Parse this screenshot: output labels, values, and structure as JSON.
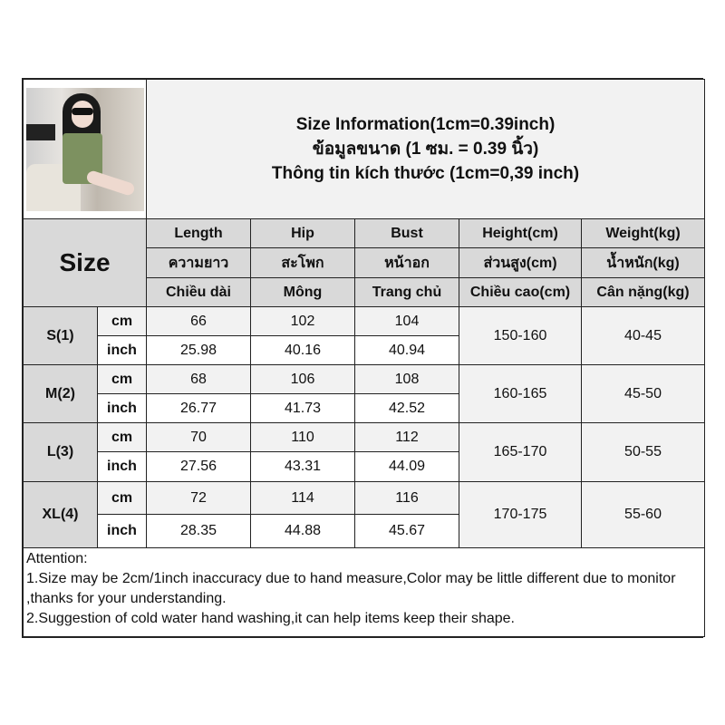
{
  "title": {
    "lines": [
      "Size Information(1cm=0.39inch)",
      "ข้อมูลขนาด (1 ซม. = 0.39 นิ้ว)",
      "Thông tin kích thước (1cm=0,39 inch)"
    ]
  },
  "photo": {
    "icon": "product-photo-green-strapless-romper"
  },
  "header": {
    "size_label": "Size",
    "columns": [
      {
        "en": "Length",
        "th": "ความยาว",
        "vi": "Chiều dài"
      },
      {
        "en": "Hip",
        "th": "สะโพก",
        "vi": "Mông"
      },
      {
        "en": "Bust",
        "th": "หน้าอก",
        "vi": "Trang chủ"
      },
      {
        "en": "Height(cm)",
        "th": "ส่วนสูง(cm)",
        "vi": "Chiều cao(cm)"
      },
      {
        "en": "Weight(kg)",
        "th": "น้ำหนัก(kg)",
        "vi": "Cân nặng(kg)"
      }
    ]
  },
  "units": {
    "cm": "cm",
    "inch": "inch"
  },
  "sizes": [
    {
      "name": "S(1)",
      "cm": [
        "66",
        "102",
        "104"
      ],
      "inch": [
        "25.98",
        "40.16",
        "40.94"
      ],
      "height": "150-160",
      "weight": "40-45"
    },
    {
      "name": "M(2)",
      "cm": [
        "68",
        "106",
        "108"
      ],
      "inch": [
        "26.77",
        "41.73",
        "42.52"
      ],
      "height": "160-165",
      "weight": "45-50"
    },
    {
      "name": "L(3)",
      "cm": [
        "70",
        "110",
        "112"
      ],
      "inch": [
        "27.56",
        "43.31",
        "44.09"
      ],
      "height": "165-170",
      "weight": "50-55"
    },
    {
      "name": "XL(4)",
      "cm": [
        "72",
        "114",
        "116"
      ],
      "inch": [
        "28.35",
        "44.88",
        "45.67"
      ],
      "height": "170-175",
      "weight": "55-60"
    }
  ],
  "attention": {
    "heading": "Attention:",
    "lines": [
      "1.Size may be 2cm/1inch inaccuracy due to hand measure,Color may be little different due to monitor ,thanks for your understanding.",
      "2.Suggestion of cold water hand washing,it can help items keep their shape."
    ]
  },
  "colors": {
    "header_gray": "#d9d9d9",
    "light_gray": "#f2f2f2",
    "border": "#222222"
  }
}
